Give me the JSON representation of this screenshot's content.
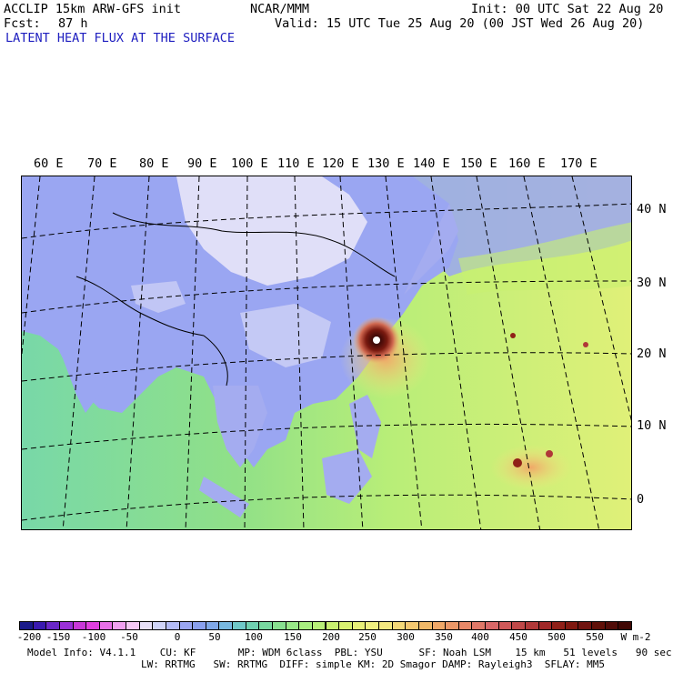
{
  "header": {
    "model": "ACCLIP 15km ARW-GFS init",
    "org": "NCAR/MMM",
    "init": "Init: 00 UTC Sat 22 Aug 20",
    "fcst_label": "Fcst:",
    "fcst_value": "87 h",
    "valid": "Valid: 15 UTC Tue 25 Aug 20 (00 JST Wed 26 Aug 20)",
    "field_title": "LATENT HEAT FLUX AT THE SURFACE"
  },
  "map": {
    "lon_labels": [
      "60 E",
      "70 E",
      "80 E",
      "90 E",
      "100 E",
      "110 E",
      "120 E",
      "130 E",
      "140 E",
      "150 E",
      "160 E",
      "170 E"
    ],
    "lat_labels": [
      "40 N",
      "30 N",
      "20 N",
      "10 N",
      "0"
    ],
    "colors": {
      "ocean_warm": "#a8e878",
      "ocean_cool": "#7ad8a8",
      "land": "#9aa6f2",
      "snow": "#e8e6f8",
      "typhoon_core": "#6a1a10",
      "typhoon_ring": "#e89a60"
    }
  },
  "colorbar": {
    "ticks": [
      "-200",
      "-150",
      "-100",
      "-50",
      "0",
      "50",
      "100",
      "150",
      "200",
      "250",
      "300",
      "350",
      "400",
      "450",
      "500",
      "550"
    ],
    "units": "W m-2",
    "colors": [
      "#1a1a8a",
      "#3a1ab0",
      "#6a28c8",
      "#9a30d8",
      "#c838d8",
      "#e040e0",
      "#e870e8",
      "#f0a0f0",
      "#f4c8f4",
      "#e8e0f8",
      "#d0d4f8",
      "#b4bcf6",
      "#9aa6f2",
      "#8aa0ee",
      "#80a8e8",
      "#78b8e0",
      "#70c8c8",
      "#70d0b0",
      "#78d8a0",
      "#88e090",
      "#98e888",
      "#a8ee80",
      "#b8f078",
      "#c8f070",
      "#d8f070",
      "#e8f078",
      "#f0f080",
      "#f4e880",
      "#f4d878",
      "#f4c870",
      "#f0b868",
      "#f0a868",
      "#ec9868",
      "#e88868",
      "#e07868",
      "#d86868",
      "#d05858",
      "#c04848",
      "#b03838",
      "#a02828",
      "#902018",
      "#801810",
      "#701410",
      "#601008",
      "#500c08",
      "#400804"
    ]
  },
  "footer": {
    "line1": "Model Info: V4.1.1    CU: KF       MP: WDM 6class  PBL: YSU      SF: Noah LSM    15 km   51 levels   90 sec",
    "line2": "LW: RRTMG   SW: RRTMG  DIFF: simple KM: 2D Smagor DAMP: Rayleigh3  SFLAY: MM5"
  }
}
